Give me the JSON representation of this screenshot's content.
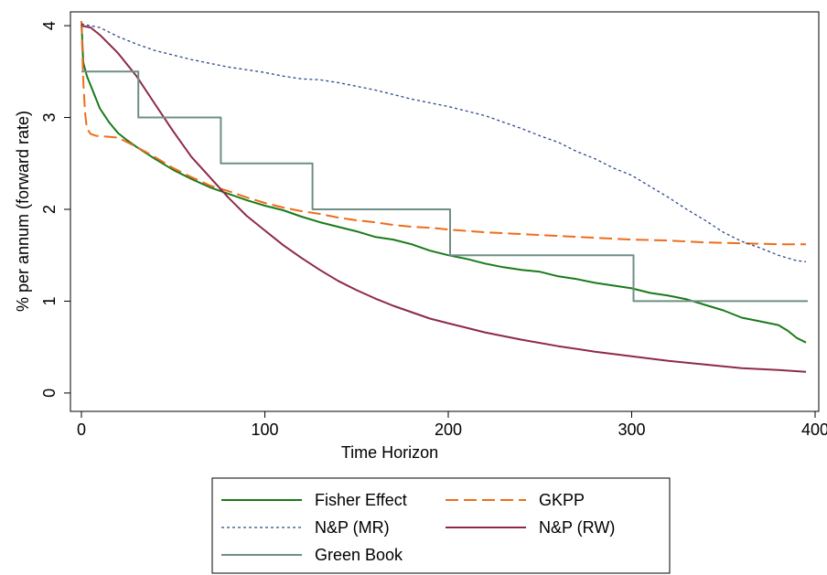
{
  "chart_data": {
    "type": "line",
    "title": "",
    "xlabel": "Time Horizon",
    "ylabel": "% per annum (forward rate)",
    "xlim": [
      -6,
      402
    ],
    "ylim": [
      -0.2,
      4.15
    ],
    "xticks": [
      0,
      100,
      200,
      300,
      400
    ],
    "yticks": [
      0,
      1,
      2,
      3,
      4
    ],
    "grid": false,
    "legend_position": "bottom",
    "series": [
      {
        "name": "Fisher Effect",
        "color": "#1a7a1a",
        "style": "solid",
        "points": [
          [
            0,
            4.05
          ],
          [
            1,
            3.6
          ],
          [
            3,
            3.45
          ],
          [
            6,
            3.3
          ],
          [
            10,
            3.1
          ],
          [
            15,
            2.95
          ],
          [
            20,
            2.83
          ],
          [
            25,
            2.75
          ],
          [
            30,
            2.68
          ],
          [
            40,
            2.55
          ],
          [
            50,
            2.43
          ],
          [
            60,
            2.33
          ],
          [
            70,
            2.24
          ],
          [
            80,
            2.17
          ],
          [
            90,
            2.1
          ],
          [
            100,
            2.04
          ],
          [
            110,
            1.99
          ],
          [
            120,
            1.92
          ],
          [
            130,
            1.86
          ],
          [
            140,
            1.81
          ],
          [
            150,
            1.76
          ],
          [
            160,
            1.7
          ],
          [
            170,
            1.67
          ],
          [
            180,
            1.62
          ],
          [
            190,
            1.55
          ],
          [
            200,
            1.5
          ],
          [
            210,
            1.46
          ],
          [
            220,
            1.41
          ],
          [
            230,
            1.37
          ],
          [
            240,
            1.34
          ],
          [
            250,
            1.32
          ],
          [
            260,
            1.27
          ],
          [
            270,
            1.24
          ],
          [
            280,
            1.2
          ],
          [
            290,
            1.17
          ],
          [
            300,
            1.14
          ],
          [
            310,
            1.09
          ],
          [
            320,
            1.06
          ],
          [
            330,
            1.02
          ],
          [
            340,
            0.96
          ],
          [
            350,
            0.9
          ],
          [
            360,
            0.82
          ],
          [
            370,
            0.78
          ],
          [
            380,
            0.74
          ],
          [
            385,
            0.68
          ],
          [
            390,
            0.6
          ],
          [
            395,
            0.55
          ]
        ]
      },
      {
        "name": "GKPP",
        "color": "#ef6c1a",
        "style": "dashed",
        "points": [
          [
            0,
            4.05
          ],
          [
            1,
            3.4
          ],
          [
            2,
            3.05
          ],
          [
            3,
            2.88
          ],
          [
            5,
            2.82
          ],
          [
            8,
            2.8
          ],
          [
            15,
            2.79
          ],
          [
            20,
            2.78
          ],
          [
            30,
            2.68
          ],
          [
            40,
            2.57
          ],
          [
            50,
            2.45
          ],
          [
            60,
            2.35
          ],
          [
            70,
            2.26
          ],
          [
            80,
            2.2
          ],
          [
            90,
            2.13
          ],
          [
            100,
            2.07
          ],
          [
            110,
            2.02
          ],
          [
            120,
            1.98
          ],
          [
            130,
            1.95
          ],
          [
            140,
            1.91
          ],
          [
            150,
            1.88
          ],
          [
            160,
            1.86
          ],
          [
            170,
            1.83
          ],
          [
            180,
            1.81
          ],
          [
            190,
            1.8
          ],
          [
            200,
            1.78
          ],
          [
            220,
            1.75
          ],
          [
            240,
            1.73
          ],
          [
            260,
            1.71
          ],
          [
            280,
            1.69
          ],
          [
            300,
            1.67
          ],
          [
            320,
            1.66
          ],
          [
            340,
            1.64
          ],
          [
            360,
            1.63
          ],
          [
            380,
            1.62
          ],
          [
            395,
            1.62
          ]
        ]
      },
      {
        "name": "N&P (MR)",
        "color": "#2a4a8c",
        "style": "dotted",
        "points": [
          [
            0,
            4.02
          ],
          [
            10,
            3.98
          ],
          [
            20,
            3.88
          ],
          [
            30,
            3.8
          ],
          [
            40,
            3.73
          ],
          [
            50,
            3.68
          ],
          [
            60,
            3.63
          ],
          [
            70,
            3.59
          ],
          [
            80,
            3.55
          ],
          [
            90,
            3.52
          ],
          [
            100,
            3.49
          ],
          [
            110,
            3.45
          ],
          [
            120,
            3.42
          ],
          [
            130,
            3.41
          ],
          [
            140,
            3.38
          ],
          [
            150,
            3.34
          ],
          [
            160,
            3.3
          ],
          [
            170,
            3.25
          ],
          [
            180,
            3.2
          ],
          [
            190,
            3.16
          ],
          [
            200,
            3.12
          ],
          [
            210,
            3.07
          ],
          [
            220,
            3.02
          ],
          [
            230,
            2.95
          ],
          [
            240,
            2.88
          ],
          [
            250,
            2.8
          ],
          [
            260,
            2.73
          ],
          [
            270,
            2.63
          ],
          [
            280,
            2.55
          ],
          [
            290,
            2.45
          ],
          [
            300,
            2.37
          ],
          [
            310,
            2.25
          ],
          [
            320,
            2.13
          ],
          [
            330,
            2.0
          ],
          [
            340,
            1.88
          ],
          [
            350,
            1.75
          ],
          [
            360,
            1.65
          ],
          [
            370,
            1.58
          ],
          [
            380,
            1.5
          ],
          [
            390,
            1.44
          ],
          [
            395,
            1.43
          ]
        ]
      },
      {
        "name": "N&P (RW)",
        "color": "#8e2a45",
        "style": "solid",
        "points": [
          [
            0,
            4.0
          ],
          [
            5,
            3.98
          ],
          [
            10,
            3.9
          ],
          [
            20,
            3.7
          ],
          [
            30,
            3.45
          ],
          [
            40,
            3.15
          ],
          [
            50,
            2.85
          ],
          [
            60,
            2.57
          ],
          [
            70,
            2.35
          ],
          [
            80,
            2.13
          ],
          [
            90,
            1.93
          ],
          [
            100,
            1.77
          ],
          [
            110,
            1.61
          ],
          [
            120,
            1.47
          ],
          [
            130,
            1.34
          ],
          [
            140,
            1.22
          ],
          [
            150,
            1.12
          ],
          [
            160,
            1.03
          ],
          [
            170,
            0.95
          ],
          [
            180,
            0.88
          ],
          [
            190,
            0.81
          ],
          [
            200,
            0.76
          ],
          [
            220,
            0.66
          ],
          [
            240,
            0.58
          ],
          [
            260,
            0.51
          ],
          [
            280,
            0.45
          ],
          [
            300,
            0.4
          ],
          [
            320,
            0.35
          ],
          [
            340,
            0.31
          ],
          [
            360,
            0.27
          ],
          [
            380,
            0.25
          ],
          [
            395,
            0.23
          ]
        ]
      },
      {
        "name": "Green Book",
        "color": "#6e8f85",
        "style": "solid",
        "points": [
          [
            0,
            3.5
          ],
          [
            31,
            3.5
          ],
          [
            31,
            3.0
          ],
          [
            76,
            3.0
          ],
          [
            76,
            2.5
          ],
          [
            126,
            2.5
          ],
          [
            126,
            2.0
          ],
          [
            201,
            2.0
          ],
          [
            201,
            1.5
          ],
          [
            301,
            1.5
          ],
          [
            301,
            1.0
          ],
          [
            396,
            1.0
          ]
        ]
      }
    ]
  }
}
